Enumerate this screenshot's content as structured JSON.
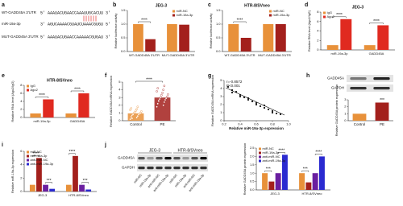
{
  "panel_a": {
    "panel": "a",
    "rows": [
      {
        "label": "WT-GADD45A 3'UTR",
        "sequence": "5' AAAUACUGAACCAAAUUGCACUU 3'"
      },
      {
        "label": "miR-19a-3p",
        "sequence": "3' AGUCAAAACGUAUCUAAACGUGU 5'"
      },
      {
        "label": "MUT-GADD45A 3'UTR",
        "sequence": "5' AAAUACUGAACCAAAAACGUGAU 3'"
      }
    ]
  },
  "chart_data": [
    {
      "type": "bar",
      "panel": "b",
      "title": "JEG-3",
      "categories": [
        "WT-GADD45A 3'UTR",
        "MUT-GADD45A 3'UTR"
      ],
      "series": [
        {
          "name": "miR-NC",
          "color": "#e8913a",
          "values": [
            1.0,
            1.0
          ]
        },
        {
          "name": "miR-19a-3p",
          "color": "#a3201c",
          "values": [
            0.45,
            0.98
          ]
        }
      ],
      "ylim": [
        0,
        1.5
      ],
      "yticks": [
        {
          "value": 0,
          "label": "0.0"
        },
        0.5,
        {
          "value": 1,
          "label": "1.0"
        },
        1.5
      ],
      "y_label": "Relative luciferase activity",
      "annotations": [
        "****"
      ],
      "legend": "upper-right"
    },
    {
      "type": "bar",
      "panel": "c",
      "title": "HTR-8/SVneo",
      "categories": [
        "WT-GADD45A 3'UTR",
        "MUT-GADD45A 3'UTR"
      ],
      "series": [
        {
          "name": "miR-NC",
          "color": "#e8913a",
          "values": [
            1.0,
            1.0
          ]
        },
        {
          "name": "miR-19a-3p",
          "color": "#a3201c",
          "values": [
            0.5,
            1.0
          ]
        }
      ],
      "ylim": [
        0,
        1.5
      ],
      "yticks": [
        {
          "value": 0,
          "label": "0.0"
        },
        0.5,
        {
          "value": 1,
          "label": "1.0"
        },
        1.5
      ],
      "y_label": "Relative luciferase activity",
      "annotations": [
        "****"
      ],
      "legend": "upper-right"
    },
    {
      "type": "bar",
      "panel": "d",
      "title": "JEG-3",
      "categories": [
        "miR-19a-3p",
        "GADD45A"
      ],
      "series": [
        {
          "name": "IgG",
          "color": "#e8913a",
          "values": [
            1.0,
            1.0
          ]
        },
        {
          "name": "Ago2",
          "color": "#e02a20",
          "values": [
            6.5,
            5.2
          ]
        }
      ],
      "ylim": [
        0,
        8
      ],
      "yticks": [
        0,
        2,
        4,
        6,
        8
      ],
      "y_label": "Relative RNA level (Ago2/IgG)",
      "annotations": [
        "****",
        "****"
      ],
      "legend": "upper-left"
    },
    {
      "type": "bar",
      "panel": "e",
      "title": "HTR-8/SVneo",
      "categories": [
        "miR-19a-3p",
        "GADD45A"
      ],
      "series": [
        {
          "name": "IgG",
          "color": "#e8913a",
          "values": [
            1.0,
            1.0
          ]
        },
        {
          "name": "Ago2",
          "color": "#e02a20",
          "values": [
            4.5,
            6.0
          ]
        }
      ],
      "ylim": [
        0,
        8
      ],
      "yticks": [
        0,
        2,
        4,
        6,
        8
      ],
      "y_label": "Relative RNA level (Ago2/IgG)",
      "annotations": [
        "****",
        "****"
      ],
      "legend": "upper-left"
    },
    {
      "type": "dot",
      "panel": "f",
      "categories": [
        "Control",
        "PE"
      ],
      "colors": [
        "#e8913a",
        "#a3201c"
      ],
      "means": [
        0.95,
        3.0
      ],
      "groups": [
        [
          0.2,
          0.4,
          0.5,
          0.6,
          0.7,
          0.8,
          0.8,
          0.9,
          1.0,
          1.0,
          1.1,
          1.2,
          1.3,
          1.4,
          1.5,
          1.6,
          1.8,
          0.3
        ],
        [
          1.8,
          2.0,
          2.2,
          2.4,
          2.5,
          2.7,
          2.8,
          2.9,
          3.0,
          3.1,
          3.3,
          3.4,
          3.6,
          3.8,
          4.0,
          4.2,
          4.5,
          2.6
        ]
      ],
      "ylim": [
        0,
        5
      ],
      "yticks": [
        0,
        1,
        2,
        3,
        4,
        5
      ],
      "y_label": "Relative GADD45A mRNA expression",
      "annotations": [
        "****"
      ]
    },
    {
      "type": "scatter",
      "panel": "g",
      "x": [
        0.25,
        0.3,
        0.3,
        0.35,
        0.4,
        0.4,
        0.45,
        0.5,
        0.5,
        0.55,
        0.6,
        0.6,
        0.65,
        0.7,
        0.7,
        0.75,
        0.8,
        0.8,
        0.85,
        0.9
      ],
      "y": [
        4.2,
        3.8,
        3.5,
        3.6,
        3.2,
        3.0,
        2.9,
        2.6,
        2.8,
        2.4,
        2.0,
        2.2,
        1.8,
        1.6,
        1.9,
        1.4,
        1.2,
        1.0,
        0.9,
        0.8
      ],
      "fit": {
        "x": [
          0.22,
          0.95
        ],
        "y": [
          4.1,
          0.7
        ]
      },
      "xlim": [
        0.2,
        1.0
      ],
      "xticks": [
        0.2,
        0.4,
        0.6,
        0.8,
        {
          "value": 1,
          "label": "1.0"
        }
      ],
      "ylim": [
        0,
        5
      ],
      "yticks": [
        0,
        1,
        2,
        3,
        4,
        5
      ],
      "x_label": "Relative miR-19a-3p expression",
      "y_label": "Relative GADD45A mRNA expression",
      "annotations": [
        "r=-0.8572",
        "P<0.001"
      ]
    },
    {
      "type": "blot_bar",
      "panel": "h",
      "blot_rows": [
        "GADD45A",
        "GAPDH"
      ],
      "categories": [
        "Control",
        "PE"
      ],
      "colors": [
        "#e8913a",
        "#a3201c"
      ],
      "values": [
        1.0,
        2.6
      ],
      "ylim": [
        0,
        3
      ],
      "yticks": [
        0,
        1,
        2,
        3
      ],
      "y_label": "Relative GADD45A protein expression",
      "annotations": [
        "***"
      ]
    },
    {
      "type": "bar",
      "panel": "i",
      "categories": [
        "JEG-3",
        "HTR-8/SVneo"
      ],
      "series": [
        {
          "name": "miR-NC",
          "color": "#e8913a",
          "values": [
            1.0,
            1.0
          ]
        },
        {
          "name": "miR-19a-3p",
          "color": "#a3201c",
          "values": [
            5.0,
            5.3
          ]
        },
        {
          "name": "anti-miR-NC",
          "color": "#6a1fa0",
          "values": [
            1.0,
            1.0
          ]
        },
        {
          "name": "anti-miR-19a-3p",
          "color": "#2a2ad0",
          "values": [
            0.4,
            0.3
          ]
        }
      ],
      "ylim": [
        0,
        6
      ],
      "yticks": [
        0,
        2,
        4,
        6
      ],
      "y_label": "Relative miR-19a-3p expression",
      "annotations": [
        "****",
        "***",
        "****",
        "***"
      ],
      "legend": "upper-left"
    },
    {
      "type": "blot",
      "panel": "j",
      "groups": [
        "JEG-3",
        "HTR-8/SVneo"
      ],
      "rows": [
        "GADD45A",
        "GAPDH"
      ],
      "lanes": [
        "miR-NC",
        "miR-19a-3p",
        "anti-miR-NC",
        "anti-miR-19a-3p",
        "miR-NC",
        "miR-19a-3p",
        "anti-miR-NC",
        "anti-miR-19a-3p"
      ]
    },
    {
      "type": "bar",
      "categories": [
        "JEG-3",
        "HTR-8/SVneo"
      ],
      "series": [
        {
          "name": "miR-NC",
          "color": "#e8913a",
          "values": [
            1.0,
            1.0
          ]
        },
        {
          "name": "miR-19a-3p",
          "color": "#a3201c",
          "values": [
            0.5,
            0.45
          ]
        },
        {
          "name": "anti-miR-NC",
          "color": "#6a1fa0",
          "values": [
            1.0,
            1.0
          ]
        },
        {
          "name": "anti-miR-19a-3p",
          "color": "#2a2ad0",
          "values": [
            2.1,
            2.0
          ]
        }
      ],
      "ylim": [
        0,
        2.5
      ],
      "yticks": [
        {
          "value": 0,
          "label": "0.0"
        },
        0.5,
        {
          "value": 1,
          "label": "1.0"
        },
        1.5,
        {
          "value": 2,
          "label": "2.0"
        },
        2.5
      ],
      "y_label": "Relative GADD45A protein expression",
      "annotations": [
        "***",
        "****",
        "***",
        "****"
      ],
      "legend": "upper-left"
    }
  ]
}
